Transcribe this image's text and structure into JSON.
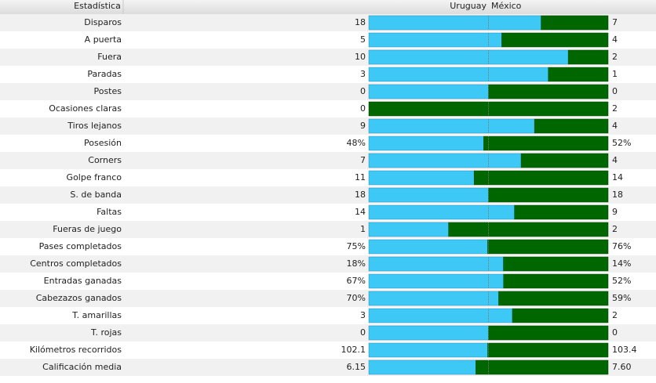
{
  "chart_data": {
    "type": "share-bar",
    "column_header": "Estadística",
    "categories": [
      "Disparos",
      "A puerta",
      "Fuera",
      "Paradas",
      "Postes",
      "Ocasiones claras",
      "Tiros lejanos",
      "Posesión",
      "Corners",
      "Golpe franco",
      "S. de banda",
      "Faltas",
      "Fueras de juego",
      "Pases completados",
      "Centros completados",
      "Entradas ganadas",
      "Cabezazos ganados",
      "T. amarillas",
      "T. rojas",
      "Kilómetros recorridos",
      "Calificación media"
    ],
    "series": [
      {
        "name": "Uruguay",
        "color": "#3ec8f6",
        "values": [
          18,
          5,
          10,
          3,
          0,
          0,
          9,
          48,
          7,
          11,
          18,
          14,
          1,
          75,
          18,
          67,
          70,
          3,
          0,
          102.1,
          6.15
        ],
        "value_labels": [
          "18",
          "5",
          "10",
          "3",
          "0",
          "0",
          "9",
          "48%",
          "7",
          "11",
          "18",
          "14",
          "1",
          "75%",
          "18%",
          "67%",
          "70%",
          "3",
          "0",
          "102.1",
          "6.15"
        ]
      },
      {
        "name": "México",
        "color": "#006600",
        "values": [
          7,
          4,
          2,
          1,
          0,
          2,
          4,
          52,
          4,
          14,
          18,
          9,
          2,
          76,
          14,
          52,
          59,
          2,
          0,
          103.4,
          7.6
        ],
        "value_labels": [
          "7",
          "4",
          "2",
          "1",
          "0",
          "2",
          "4",
          "52%",
          "4",
          "14",
          "18",
          "9",
          "2",
          "76%",
          "14%",
          "52%",
          "59%",
          "2",
          "0",
          "103.4",
          "7.60"
        ]
      }
    ]
  }
}
